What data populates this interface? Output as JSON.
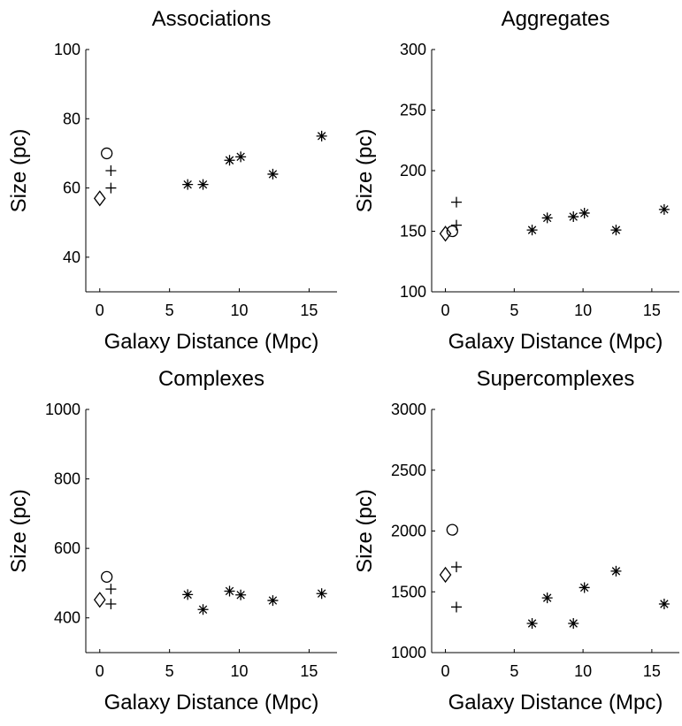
{
  "chart_data": [
    {
      "type": "scatter",
      "title": "Associations",
      "xlabel": "Galaxy Distance (Mpc)",
      "ylabel": "Size (pc)",
      "xlim": [
        -1,
        17
      ],
      "ylim": [
        30,
        100
      ],
      "xticks": [
        0,
        5,
        10,
        15
      ],
      "yticks": [
        40,
        60,
        80,
        100
      ],
      "grid": false,
      "series": [
        {
          "marker": "diamond",
          "points": [
            {
              "x": 0.0,
              "y": 57
            }
          ]
        },
        {
          "marker": "circle",
          "points": [
            {
              "x": 0.5,
              "y": 70
            }
          ]
        },
        {
          "marker": "plus",
          "points": [
            {
              "x": 0.8,
              "y": 65
            },
            {
              "x": 0.8,
              "y": 60
            }
          ]
        },
        {
          "marker": "asterisk",
          "points": [
            {
              "x": 6.3,
              "y": 61
            },
            {
              "x": 7.4,
              "y": 61
            },
            {
              "x": 9.3,
              "y": 68
            },
            {
              "x": 10.1,
              "y": 69
            },
            {
              "x": 12.4,
              "y": 64
            },
            {
              "x": 15.9,
              "y": 75
            }
          ]
        }
      ]
    },
    {
      "type": "scatter",
      "title": "Aggregates",
      "xlabel": "Galaxy Distance (Mpc)",
      "ylabel": "Size (pc)",
      "xlim": [
        -1,
        17
      ],
      "ylim": [
        100,
        300
      ],
      "xticks": [
        0,
        5,
        10,
        15
      ],
      "yticks": [
        100,
        150,
        200,
        250,
        300
      ],
      "grid": false,
      "series": [
        {
          "marker": "diamond",
          "points": [
            {
              "x": 0.0,
              "y": 148
            }
          ]
        },
        {
          "marker": "circle",
          "points": [
            {
              "x": 0.5,
              "y": 150
            }
          ]
        },
        {
          "marker": "plus",
          "points": [
            {
              "x": 0.8,
              "y": 174
            },
            {
              "x": 0.8,
              "y": 155
            }
          ]
        },
        {
          "marker": "asterisk",
          "points": [
            {
              "x": 6.3,
              "y": 151
            },
            {
              "x": 7.4,
              "y": 161
            },
            {
              "x": 9.3,
              "y": 162
            },
            {
              "x": 10.1,
              "y": 165
            },
            {
              "x": 12.4,
              "y": 151
            },
            {
              "x": 15.9,
              "y": 168
            }
          ]
        }
      ]
    },
    {
      "type": "scatter",
      "title": "Complexes",
      "xlabel": "Galaxy Distance (Mpc)",
      "ylabel": "Size (pc)",
      "xlim": [
        -1,
        17
      ],
      "ylim": [
        300,
        1000
      ],
      "xticks": [
        0,
        5,
        10,
        15
      ],
      "yticks": [
        400,
        600,
        800,
        1000
      ],
      "grid": false,
      "series": [
        {
          "marker": "diamond",
          "points": [
            {
              "x": 0.0,
              "y": 452
            }
          ]
        },
        {
          "marker": "circle",
          "points": [
            {
              "x": 0.5,
              "y": 518
            }
          ]
        },
        {
          "marker": "plus",
          "points": [
            {
              "x": 0.8,
              "y": 483
            },
            {
              "x": 0.8,
              "y": 440
            }
          ]
        },
        {
          "marker": "asterisk",
          "points": [
            {
              "x": 6.3,
              "y": 467
            },
            {
              "x": 7.4,
              "y": 424
            },
            {
              "x": 9.3,
              "y": 477
            },
            {
              "x": 10.1,
              "y": 466
            },
            {
              "x": 12.4,
              "y": 450
            },
            {
              "x": 15.9,
              "y": 470
            }
          ]
        }
      ]
    },
    {
      "type": "scatter",
      "title": "Supercomplexes",
      "xlabel": "Galaxy Distance (Mpc)",
      "ylabel": "Size (pc)",
      "xlim": [
        -1,
        17
      ],
      "ylim": [
        1000,
        3000
      ],
      "xticks": [
        0,
        5,
        10,
        15
      ],
      "yticks": [
        1000,
        1500,
        2000,
        2500,
        3000
      ],
      "grid": false,
      "series": [
        {
          "marker": "diamond",
          "points": [
            {
              "x": 0.0,
              "y": 1640
            }
          ]
        },
        {
          "marker": "circle",
          "points": [
            {
              "x": 0.5,
              "y": 2010
            }
          ]
        },
        {
          "marker": "plus",
          "points": [
            {
              "x": 0.8,
              "y": 1705
            },
            {
              "x": 0.8,
              "y": 1375
            }
          ]
        },
        {
          "marker": "asterisk",
          "points": [
            {
              "x": 6.3,
              "y": 1240
            },
            {
              "x": 7.4,
              "y": 1450
            },
            {
              "x": 9.3,
              "y": 1240
            },
            {
              "x": 10.1,
              "y": 1535
            },
            {
              "x": 12.4,
              "y": 1670
            },
            {
              "x": 15.9,
              "y": 1400
            }
          ]
        }
      ]
    }
  ]
}
